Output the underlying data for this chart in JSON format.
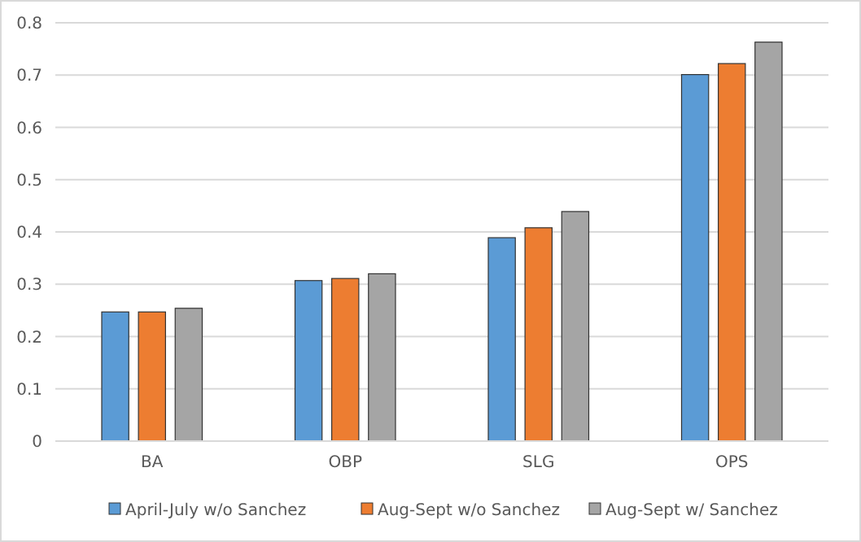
{
  "chart_data": {
    "type": "bar",
    "categories": [
      "BA",
      "OBP",
      "SLG",
      "OPS"
    ],
    "series": [
      {
        "name": "April-July w/o Sanchez",
        "color": "#5b9bd5",
        "values": [
          0.247,
          0.307,
          0.389,
          0.701
        ]
      },
      {
        "name": "Aug-Sept w/o Sanchez",
        "color": "#ed7d31",
        "values": [
          0.247,
          0.311,
          0.408,
          0.722
        ]
      },
      {
        "name": "Aug-Sept w/ Sanchez",
        "color": "#a5a5a5",
        "values": [
          0.254,
          0.32,
          0.439,
          0.763
        ]
      }
    ],
    "ylim": [
      0,
      0.8
    ],
    "yticks": [
      0,
      0.1,
      0.2,
      0.3,
      0.4,
      0.5,
      0.6,
      0.7,
      0.8
    ],
    "grid": "y",
    "legend": "bottom"
  }
}
